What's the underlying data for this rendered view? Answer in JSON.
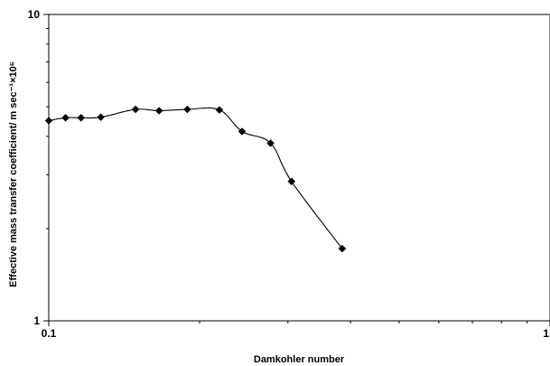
{
  "chart_data": {
    "type": "line",
    "title": "",
    "xlabel": "Damkohler number",
    "ylabel": "Effective mass transfer coefficient/ m sec⁻¹×10⁶",
    "x_scale": "log",
    "y_scale": "log",
    "xlim": [
      0.1,
      1
    ],
    "ylim": [
      1,
      10
    ],
    "x_tick_labels": [
      "0.1",
      "1"
    ],
    "y_tick_labels": [
      "1",
      "10"
    ],
    "grid": false,
    "legend": "none",
    "series": [
      {
        "marker": "diamond",
        "color": "#000000",
        "x": [
          0.1,
          0.108,
          0.116,
          0.127,
          0.149,
          0.166,
          0.189,
          0.219,
          0.243,
          0.277,
          0.305,
          0.385
        ],
        "y": [
          4.5,
          4.6,
          4.6,
          4.62,
          4.9,
          4.85,
          4.9,
          4.88,
          4.15,
          3.8,
          2.85,
          1.72
        ]
      }
    ],
    "colors": {
      "axis": "#000000",
      "line": "#000000",
      "marker": "#000000"
    }
  }
}
